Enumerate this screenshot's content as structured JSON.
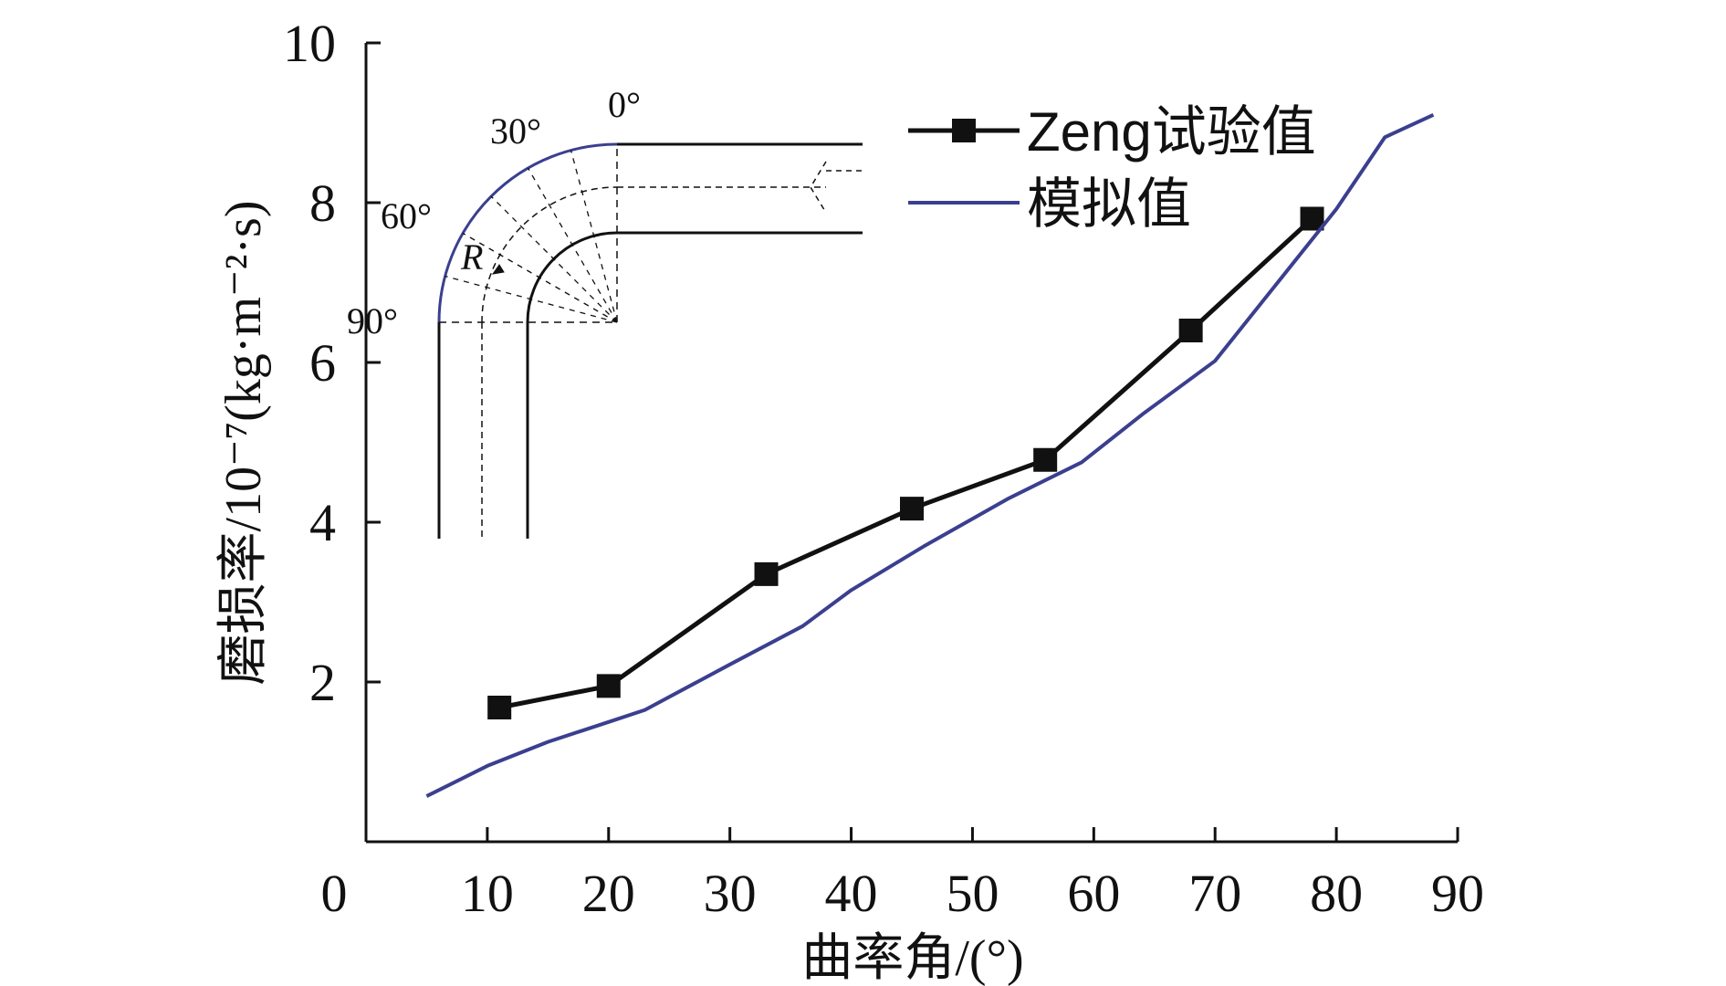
{
  "chart_data": {
    "type": "line",
    "xlabel": "曲率角/(°)",
    "ylabel": "磨损率/10⁻⁷(kg·m⁻²·s)",
    "xlim": [
      0,
      90
    ],
    "ylim": [
      0,
      10
    ],
    "x_ticks": [
      "0",
      "10",
      "20",
      "30",
      "40",
      "50",
      "60",
      "70",
      "80",
      "90"
    ],
    "y_ticks": [
      "2",
      "4",
      "6",
      "8",
      "10"
    ],
    "grid": false,
    "legend_position": "top-right",
    "series": [
      {
        "name": "Zeng试验值",
        "color": "#111111",
        "marker": "square",
        "x": [
          11,
          20,
          33,
          45,
          56,
          68,
          78
        ],
        "y": [
          1.68,
          1.95,
          3.35,
          4.17,
          4.78,
          6.4,
          7.8
        ]
      },
      {
        "name": "模拟值",
        "color": "#3b3f8f",
        "marker": "none",
        "x": [
          5,
          10,
          15,
          20,
          23,
          30,
          36,
          40,
          46,
          53,
          59,
          64,
          70,
          75,
          80,
          84,
          88
        ],
        "y": [
          0.57,
          0.95,
          1.25,
          1.5,
          1.65,
          2.22,
          2.7,
          3.15,
          3.7,
          4.3,
          4.75,
          5.35,
          6.02,
          6.97,
          7.92,
          8.82,
          9.1
        ]
      }
    ],
    "inset": {
      "description_icon": "pipe-elbow-icon",
      "angle_labels": [
        "0°",
        "30°",
        "60°",
        "90°"
      ],
      "radius_label": "R"
    }
  }
}
